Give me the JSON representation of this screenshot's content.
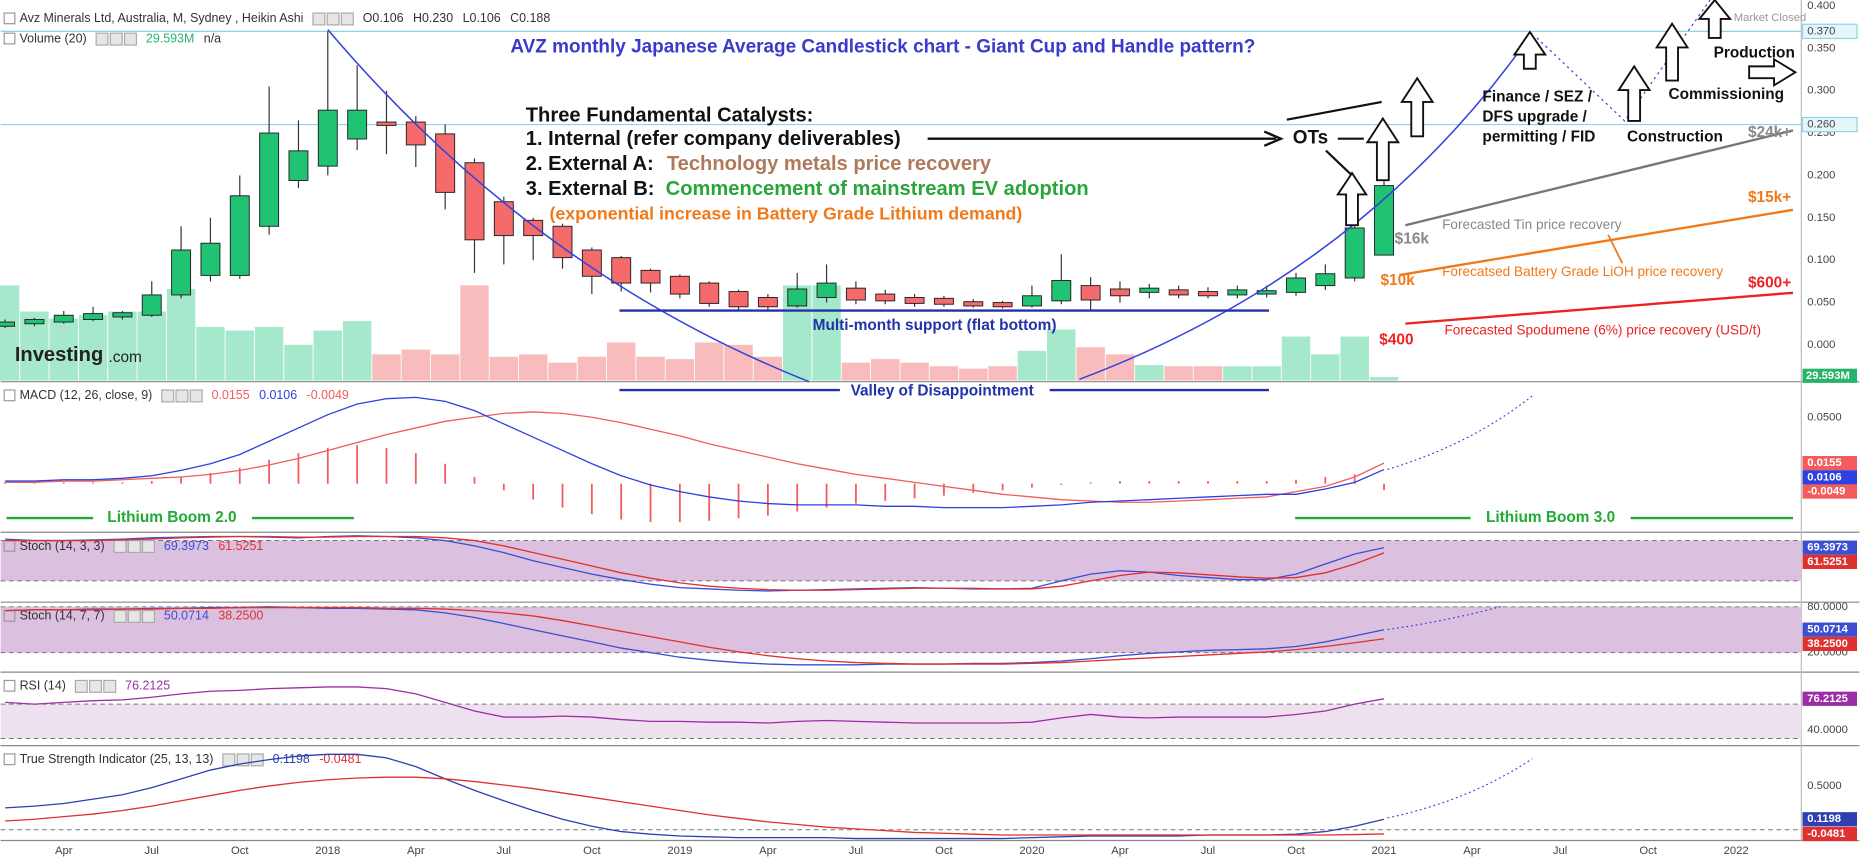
{
  "annotations": [
    "AVZ monthly Japanese Average Candlestick chart - Giant Cup and Handle pattern?",
    "Three Fundamental Catalysts:",
    "1. Internal (refer company deliverables)",
    "2. External A:",
    "Technology metals price recovery",
    "3. External B:",
    "Commencement of mainstream EV adoption",
    "(exponential increase in Battery Grade Lithium demand)",
    "OTs",
    "Finance / SEZ /",
    "DFS upgrade /",
    "permitting / FID",
    "Construction",
    "Commissioning",
    "Production",
    "$24k+",
    "$16k",
    "Forecasted Tin price recovery",
    "$15k+",
    "$10k",
    "Forecatsed Battery Grade LiOH price recovery",
    "$600+",
    "$400",
    "Forecasted Spodumene (6%) price recovery (USD/t)",
    "Multi-month support (flat bottom)",
    "Valley of Disappointment",
    "Lithium Boom 2.0",
    "Lithium Boom 3.0"
  ],
  "watermark": [
    "Investing",
    ".com"
  ],
  "chart_data": [
    {
      "type": "candlestick",
      "title": "Avz Minerals Ltd, Australia, M, Sydney , Heikin Ashi",
      "header_values": [
        "O0.106",
        "H0.230",
        "L0.106",
        "C0.188"
      ],
      "status": "Market Closed",
      "x": [
        "2017-02",
        "2017-03",
        "2017-04",
        "2017-05",
        "2017-06",
        "2017-07",
        "2017-08",
        "2017-09",
        "2017-10",
        "2017-11",
        "2017-12",
        "2018-01",
        "2018-02",
        "2018-03",
        "2018-04",
        "2018-05",
        "2018-06",
        "2018-07",
        "2018-08",
        "2018-09",
        "2018-10",
        "2018-11",
        "2018-12",
        "2019-01",
        "2019-02",
        "2019-03",
        "2019-04",
        "2019-05",
        "2019-06",
        "2019-07",
        "2019-08",
        "2019-09",
        "2019-10",
        "2019-11",
        "2019-12",
        "2020-01",
        "2020-02",
        "2020-03",
        "2020-04",
        "2020-05",
        "2020-06",
        "2020-07",
        "2020-08",
        "2020-09",
        "2020-10",
        "2020-11",
        "2020-12",
        "2021-01"
      ],
      "open": [
        0.022,
        0.025,
        0.027,
        0.03,
        0.033,
        0.035,
        0.059,
        0.082,
        0.082,
        0.14,
        0.194,
        0.211,
        0.243,
        0.263,
        0.263,
        0.249,
        0.215,
        0.169,
        0.147,
        0.14,
        0.112,
        0.103,
        0.088,
        0.081,
        0.073,
        0.063,
        0.056,
        0.046,
        0.056,
        0.067,
        0.06,
        0.056,
        0.055,
        0.051,
        0.05,
        0.046,
        0.052,
        0.07,
        0.066,
        0.062,
        0.065,
        0.063,
        0.059,
        0.06,
        0.062,
        0.07,
        0.079,
        0.106
      ],
      "high": [
        0.03,
        0.032,
        0.04,
        0.045,
        0.04,
        0.075,
        0.14,
        0.15,
        0.2,
        0.305,
        0.265,
        0.37,
        0.33,
        0.3,
        0.27,
        0.26,
        0.22,
        0.175,
        0.15,
        0.143,
        0.115,
        0.105,
        0.09,
        0.083,
        0.075,
        0.065,
        0.06,
        0.085,
        0.095,
        0.075,
        0.065,
        0.06,
        0.058,
        0.054,
        0.052,
        0.07,
        0.107,
        0.08,
        0.075,
        0.072,
        0.07,
        0.068,
        0.07,
        0.07,
        0.085,
        0.095,
        0.14,
        0.23
      ],
      "low": [
        0.02,
        0.022,
        0.025,
        0.028,
        0.03,
        0.033,
        0.055,
        0.075,
        0.078,
        0.13,
        0.185,
        0.2,
        0.23,
        0.225,
        0.21,
        0.16,
        0.085,
        0.095,
        0.1,
        0.09,
        0.06,
        0.063,
        0.062,
        0.055,
        0.045,
        0.04,
        0.04,
        0.044,
        0.05,
        0.048,
        0.048,
        0.045,
        0.045,
        0.044,
        0.043,
        0.044,
        0.048,
        0.04,
        0.05,
        0.055,
        0.055,
        0.055,
        0.055,
        0.056,
        0.058,
        0.065,
        0.075,
        0.106
      ],
      "close": [
        0.027,
        0.03,
        0.035,
        0.037,
        0.038,
        0.059,
        0.112,
        0.12,
        0.176,
        0.25,
        0.229,
        0.277,
        0.277,
        0.259,
        0.236,
        0.18,
        0.124,
        0.129,
        0.129,
        0.103,
        0.081,
        0.073,
        0.073,
        0.06,
        0.049,
        0.045,
        0.045,
        0.066,
        0.073,
        0.053,
        0.052,
        0.049,
        0.048,
        0.046,
        0.045,
        0.058,
        0.076,
        0.053,
        0.058,
        0.067,
        0.059,
        0.058,
        0.065,
        0.064,
        0.079,
        0.084,
        0.138,
        0.188
      ],
      "up_color": "#1fc372",
      "down_color": "#f56a6a",
      "ylim": [
        -0.042,
        0.407
      ],
      "yticks": [
        {
          "value": 0,
          "label": "0.000"
        },
        {
          "value": 0.05,
          "label": "0.050"
        },
        {
          "value": 0.1,
          "label": "0.100"
        },
        {
          "value": 0.15,
          "label": "0.150"
        },
        {
          "value": 0.2,
          "label": "0.200"
        },
        {
          "value": 0.25,
          "label": "0.250"
        },
        {
          "value": 0.3,
          "label": "0.300"
        },
        {
          "value": 0.35,
          "label": "0.350"
        },
        {
          "value": 0.4,
          "label": "0.400"
        }
      ],
      "levels": [
        {
          "value": 0.37,
          "label": "0.370"
        },
        {
          "value": 0.26,
          "label": "0.260"
        }
      ],
      "level_color": "#8fd3e3",
      "xticks": [
        {
          "value": "2017-04",
          "label": "Apr"
        },
        {
          "value": "2017-07",
          "label": "Jul"
        },
        {
          "value": "2017-10",
          "label": "Oct"
        },
        {
          "value": "2018-01",
          "label": "2018"
        },
        {
          "value": "2018-04",
          "label": "Apr"
        },
        {
          "value": "2018-07",
          "label": "Jul"
        },
        {
          "value": "2018-10",
          "label": "Oct"
        },
        {
          "value": "2019-01",
          "label": "2019"
        },
        {
          "value": "2019-04",
          "label": "Apr"
        },
        {
          "value": "2019-07",
          "label": "Jul"
        },
        {
          "value": "2019-10",
          "label": "Oct"
        },
        {
          "value": "2020-01",
          "label": "2020"
        },
        {
          "value": "2020-04",
          "label": "Apr"
        },
        {
          "value": "2020-07",
          "label": "Jul"
        },
        {
          "value": "2020-10",
          "label": "Oct"
        },
        {
          "value": "2021-01",
          "label": "2021"
        },
        {
          "value": "2021-04",
          "label": "Apr"
        },
        {
          "value": "2021-07",
          "label": "Jul"
        },
        {
          "value": "2021-10",
          "label": "Oct"
        },
        {
          "value": "2022-01",
          "label": "2022"
        }
      ]
    },
    {
      "type": "bar",
      "title": "Volume (20)",
      "extra": "n/a",
      "values": [
        800,
        580,
        520,
        550,
        580,
        580,
        770,
        450,
        420,
        450,
        300,
        420,
        500,
        220,
        260,
        220,
        800,
        200,
        220,
        150,
        200,
        320,
        200,
        180,
        320,
        300,
        200,
        800,
        800,
        150,
        180,
        150,
        120,
        100,
        120,
        250,
        430,
        280,
        220,
        130,
        120,
        120,
        120,
        120,
        370,
        220,
        370,
        29.593
      ],
      "last_label": "29.593M",
      "up_color": "#a6e8cb",
      "down_color": "#f8bcbc",
      "label_color": "#27b36b",
      "ylim": [
        0,
        3200
      ]
    },
    {
      "type": "macd",
      "title": "MACD (12, 26, close, 9)",
      "series": [
        {
          "color": "#f25c5c",
          "last_label": "0.0155",
          "values": [
            0.001,
            0.001,
            0.002,
            0.002,
            0.003,
            0.004,
            0.005,
            0.007,
            0.01,
            0.014,
            0.019,
            0.025,
            0.031,
            0.037,
            0.042,
            0.047,
            0.05,
            0.053,
            0.054,
            0.053,
            0.05,
            0.046,
            0.041,
            0.036,
            0.03,
            0.025,
            0.02,
            0.015,
            0.011,
            0.007,
            0.004,
            0.001,
            -0.002,
            -0.005,
            -0.008,
            -0.01,
            -0.012,
            -0.013,
            -0.014,
            -0.014,
            -0.013,
            -0.012,
            -0.011,
            -0.01,
            -0.006,
            -0.002,
            0.005,
            0.0155
          ]
        },
        {
          "color": "#2f3fe0",
          "last_label": "0.0106",
          "values": [
            0.002,
            0.002,
            0.003,
            0.003,
            0.004,
            0.006,
            0.01,
            0.015,
            0.022,
            0.032,
            0.042,
            0.052,
            0.06,
            0.064,
            0.065,
            0.062,
            0.055,
            0.045,
            0.035,
            0.025,
            0.015,
            0.006,
            -0.001,
            -0.006,
            -0.01,
            -0.013,
            -0.015,
            -0.016,
            -0.016,
            -0.016,
            -0.017,
            -0.017,
            -0.018,
            -0.018,
            -0.018,
            -0.017,
            -0.016,
            -0.014,
            -0.013,
            -0.012,
            -0.011,
            -0.01,
            -0.009,
            -0.008,
            -0.008,
            -0.004,
            0.001,
            0.0106
          ]
        }
      ],
      "histogram": {
        "color": "#f25c5c",
        "last_label": "-0.0049",
        "values": [
          0.001,
          0.001,
          0.001,
          0.001,
          0.001,
          0.002,
          0.005,
          0.008,
          0.012,
          0.018,
          0.023,
          0.027,
          0.029,
          0.027,
          0.023,
          0.015,
          0.005,
          -0.005,
          -0.012,
          -0.018,
          -0.023,
          -0.027,
          -0.029,
          -0.029,
          -0.028,
          -0.026,
          -0.024,
          -0.021,
          -0.018,
          -0.015,
          -0.013,
          -0.011,
          -0.009,
          -0.007,
          -0.005,
          -0.003,
          -0.001,
          0.001,
          0.002,
          0.002,
          0.002,
          0.002,
          0.002,
          0.002,
          0.003,
          0.005,
          0.007,
          -0.0049
        ]
      },
      "ylim": [
        -0.0357,
        0.0768
      ],
      "yticks": [
        {
          "value": 0.05,
          "label": "0.0500"
        }
      ]
    },
    {
      "type": "line",
      "title": "Stoch (14, 3, 3)",
      "series": [
        {
          "color": "#3b4fd0",
          "last_label": "69.3973",
          "values": [
            82,
            80,
            80,
            81,
            82,
            84,
            85,
            86,
            86,
            85,
            84,
            86,
            87,
            86,
            84,
            80,
            72,
            62,
            50,
            40,
            30,
            22,
            15,
            10,
            8,
            6,
            5,
            6,
            7,
            8,
            9,
            10,
            9,
            8,
            8,
            9,
            20,
            30,
            35,
            33,
            28,
            25,
            22,
            22,
            30,
            45,
            60,
            69.3973
          ]
        },
        {
          "color": "#e03030",
          "last_label": "61.5251",
          "values": [
            80,
            80,
            80,
            80,
            81,
            82,
            84,
            85,
            86,
            86,
            85,
            85,
            86,
            86,
            86,
            84,
            80,
            72,
            62,
            52,
            42,
            32,
            24,
            17,
            12,
            9,
            7,
            6,
            6,
            7,
            8,
            9,
            9,
            9,
            8,
            8,
            12,
            20,
            28,
            33,
            32,
            29,
            26,
            24,
            25,
            32,
            45,
            61.5251
          ]
        }
      ],
      "band": [
        20,
        80
      ],
      "band_color": "#dcc0df",
      "ylim": [
        -10,
        92.3
      ],
      "yticks": []
    },
    {
      "type": "line",
      "title": "Stoch (14, 7, 7)",
      "series": [
        {
          "color": "#3b4fd0",
          "last_label": "50.0714",
          "values": [
            75,
            76,
            76,
            77,
            77,
            78,
            78,
            79,
            79,
            80,
            79,
            78,
            78,
            77,
            76,
            72,
            66,
            58,
            50,
            42,
            34,
            26,
            20,
            14,
            10,
            7,
            5,
            4,
            4,
            4,
            5,
            5,
            5,
            6,
            6,
            7,
            9,
            12,
            16,
            19,
            21,
            23,
            24,
            25,
            28,
            34,
            42,
            50.0714
          ]
        },
        {
          "color": "#e03030",
          "last_label": "38.2500",
          "values": [
            75,
            76,
            76,
            76,
            77,
            77,
            78,
            78,
            79,
            79,
            79,
            79,
            79,
            78,
            78,
            77,
            75,
            72,
            68,
            62,
            55,
            48,
            41,
            34,
            27,
            21,
            16,
            12,
            9,
            7,
            6,
            5,
            5,
            5,
            5,
            6,
            7,
            9,
            11,
            13,
            15,
            17,
            19,
            21,
            24,
            28,
            33,
            38.25
          ]
        }
      ],
      "band": [
        20,
        80
      ],
      "band_color": "#dcc0df",
      "ylim": [
        -4,
        86
      ],
      "yticks": [
        {
          "value": 80,
          "label": "80.0000"
        },
        {
          "value": 20,
          "label": "20.0000"
        }
      ]
    },
    {
      "type": "line",
      "title": "RSI (14)",
      "series": [
        {
          "color": "#9a2fa5",
          "last_label": "76.2125",
          "values": [
            72,
            70,
            72,
            74,
            75,
            78,
            82,
            85,
            86,
            88,
            89,
            90,
            90,
            88,
            82,
            72,
            62,
            55,
            55,
            56,
            55,
            52,
            50,
            50,
            49,
            49,
            48,
            50,
            51,
            50,
            49,
            48,
            48,
            48,
            48,
            49,
            54,
            58,
            55,
            54,
            55,
            55,
            55,
            55,
            58,
            62,
            70,
            76.2125
          ]
        }
      ],
      "band": [
        30,
        70
      ],
      "band_color": "#efe2f0",
      "ylim": [
        23.1,
        107.2
      ],
      "yticks": [
        {
          "value": 40,
          "label": "40.0000"
        }
      ]
    },
    {
      "type": "line",
      "title": "True Strength Indicator (25, 13, 13)",
      "series": [
        {
          "color": "#2f3fb0",
          "last_label": "0.1198",
          "values": [
            0.25,
            0.27,
            0.3,
            0.35,
            0.4,
            0.48,
            0.58,
            0.68,
            0.75,
            0.8,
            0.84,
            0.86,
            0.86,
            0.82,
            0.72,
            0.58,
            0.45,
            0.33,
            0.22,
            0.12,
            0.04,
            -0.02,
            -0.05,
            -0.07,
            -0.08,
            -0.09,
            -0.09,
            -0.09,
            -0.09,
            -0.1,
            -0.1,
            -0.1,
            -0.1,
            -0.1,
            -0.1,
            -0.09,
            -0.08,
            -0.07,
            -0.07,
            -0.07,
            -0.07,
            -0.06,
            -0.06,
            -0.06,
            -0.05,
            -0.02,
            0.04,
            0.1198
          ]
        },
        {
          "color": "#e03030",
          "last_label": "-0.0481",
          "values": [
            0.1,
            0.12,
            0.15,
            0.18,
            0.22,
            0.27,
            0.33,
            0.39,
            0.45,
            0.5,
            0.54,
            0.57,
            0.59,
            0.6,
            0.6,
            0.58,
            0.55,
            0.51,
            0.47,
            0.42,
            0.37,
            0.32,
            0.27,
            0.22,
            0.17,
            0.13,
            0.09,
            0.06,
            0.03,
            0.01,
            -0.01,
            -0.03,
            -0.04,
            -0.05,
            -0.06,
            -0.06,
            -0.06,
            -0.06,
            -0.06,
            -0.06,
            -0.06,
            -0.06,
            -0.06,
            -0.06,
            -0.06,
            -0.06,
            -0.055,
            -0.0481
          ]
        }
      ],
      "band": [
        0
      ],
      "band_color": "none",
      "ylim": [
        -0.122,
        0.959
      ],
      "yticks": [
        {
          "value": 0.5,
          "label": "0.5000"
        }
      ]
    }
  ]
}
